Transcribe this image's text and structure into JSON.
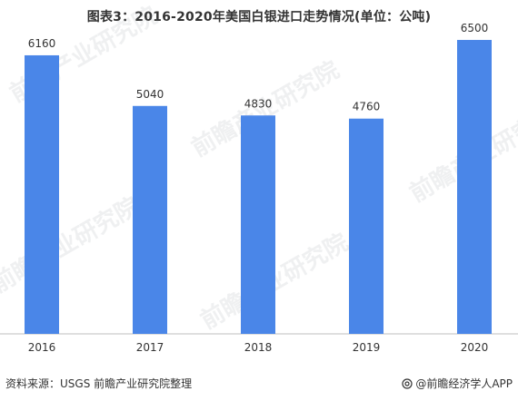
{
  "title": "图表3：2016-2020年美国白银进口走势情况(单位：公吨)",
  "footer": {
    "source": "资料来源：USGS 前瞻产业研究院整理",
    "brand": "@前瞻经济学人APP",
    "brand_icon": "at-icon"
  },
  "watermark_text": "前瞻产业研究院",
  "colors": {
    "bar": "#4A86E8",
    "axis": "#BFBFBF",
    "text": "#333333"
  },
  "chart_data": {
    "type": "bar",
    "title": "图表3：2016-2020年美国白银进口走势情况(单位：公吨)",
    "categories": [
      "2016",
      "2017",
      "2018",
      "2019",
      "2020"
    ],
    "values": [
      6160,
      5040,
      4830,
      4760,
      6500
    ],
    "value_labels": [
      "6160",
      "5040",
      "4830",
      "4760",
      "6500"
    ],
    "xlabel": "",
    "ylabel": "",
    "ylim": [
      0,
      7500
    ],
    "grid": false,
    "legend": "none"
  }
}
